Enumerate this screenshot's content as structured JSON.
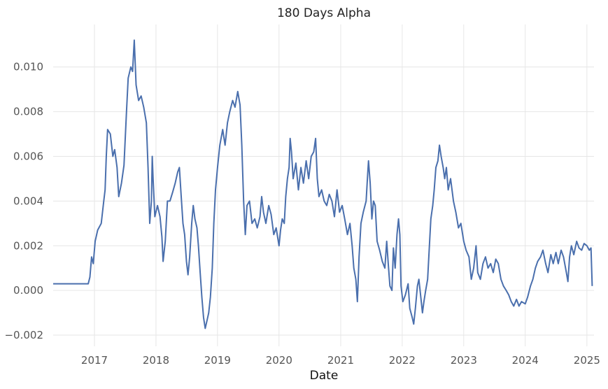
{
  "chart_data": {
    "type": "line",
    "title": "180 Days Alpha",
    "xlabel": "Date",
    "ylabel": "",
    "x_ticks": [
      "2017",
      "2018",
      "2019",
      "2020",
      "2021",
      "2022",
      "2023",
      "2024",
      "2025"
    ],
    "y_ticks": [
      "0.010",
      "0.008",
      "0.006",
      "0.004",
      "0.002",
      "0.000",
      "−0.002"
    ],
    "xlim": [
      "2016-05-01",
      "2025-02-12"
    ],
    "ylim": [
      -0.0025,
      0.0119
    ],
    "grid": true,
    "legend": "none",
    "line_color": "#4a6fad",
    "series": [
      {
        "points": [
          [
            "2016-05-01",
            0.0003
          ],
          [
            "2016-11-25",
            0.0003
          ],
          [
            "2016-12-05",
            0.0006
          ],
          [
            "2016-12-15",
            0.0015
          ],
          [
            "2016-12-25",
            0.0012
          ],
          [
            "2017-01-05",
            0.0022
          ],
          [
            "2017-01-20",
            0.0027
          ],
          [
            "2017-02-10",
            0.003
          ],
          [
            "2017-02-25",
            0.004
          ],
          [
            "2017-03-05",
            0.0045
          ],
          [
            "2017-03-12",
            0.006
          ],
          [
            "2017-03-20",
            0.0072
          ],
          [
            "2017-04-05",
            0.007
          ],
          [
            "2017-04-20",
            0.006
          ],
          [
            "2017-05-01",
            0.0063
          ],
          [
            "2017-05-15",
            0.0055
          ],
          [
            "2017-05-25",
            0.0042
          ],
          [
            "2017-06-10",
            0.0048
          ],
          [
            "2017-06-25",
            0.0056
          ],
          [
            "2017-07-10",
            0.008
          ],
          [
            "2017-07-20",
            0.0095
          ],
          [
            "2017-08-05",
            0.01
          ],
          [
            "2017-08-15",
            0.0098
          ],
          [
            "2017-08-25",
            0.0112
          ],
          [
            "2017-09-05",
            0.0092
          ],
          [
            "2017-09-20",
            0.0085
          ],
          [
            "2017-10-05",
            0.0087
          ],
          [
            "2017-10-20",
            0.0082
          ],
          [
            "2017-11-05",
            0.0075
          ],
          [
            "2017-11-15",
            0.0055
          ],
          [
            "2017-11-25",
            0.003
          ],
          [
            "2017-12-05",
            0.004
          ],
          [
            "2017-12-10",
            0.006
          ],
          [
            "2017-12-15",
            0.005
          ],
          [
            "2017-12-25",
            0.0033
          ],
          [
            "2018-01-10",
            0.0038
          ],
          [
            "2018-01-25",
            0.0033
          ],
          [
            "2018-02-05",
            0.0024
          ],
          [
            "2018-02-12",
            0.0013
          ],
          [
            "2018-02-25",
            0.0022
          ],
          [
            "2018-03-10",
            0.004
          ],
          [
            "2018-03-25",
            0.004
          ],
          [
            "2018-04-10",
            0.0044
          ],
          [
            "2018-04-25",
            0.0048
          ],
          [
            "2018-05-10",
            0.0053
          ],
          [
            "2018-05-20",
            0.0055
          ],
          [
            "2018-05-30",
            0.0043
          ],
          [
            "2018-06-10",
            0.003
          ],
          [
            "2018-06-20",
            0.0025
          ],
          [
            "2018-07-01",
            0.0013
          ],
          [
            "2018-07-10",
            0.0007
          ],
          [
            "2018-07-20",
            0.0015
          ],
          [
            "2018-08-01",
            0.003
          ],
          [
            "2018-08-10",
            0.0038
          ],
          [
            "2018-08-20",
            0.0032
          ],
          [
            "2018-09-01",
            0.0028
          ],
          [
            "2018-09-10",
            0.002
          ],
          [
            "2018-09-20",
            0.0008
          ],
          [
            "2018-09-30",
            -0.0003
          ],
          [
            "2018-10-10",
            -0.0012
          ],
          [
            "2018-10-20",
            -0.0017
          ],
          [
            "2018-11-01",
            -0.0013
          ],
          [
            "2018-11-10",
            -0.001
          ],
          [
            "2018-11-20",
            -0.0003
          ],
          [
            "2018-12-01",
            0.001
          ],
          [
            "2018-12-10",
            0.003
          ],
          [
            "2018-12-20",
            0.0045
          ],
          [
            "2019-01-01",
            0.0055
          ],
          [
            "2019-01-15",
            0.0065
          ],
          [
            "2019-02-01",
            0.0072
          ],
          [
            "2019-02-15",
            0.0065
          ],
          [
            "2019-03-01",
            0.0075
          ],
          [
            "2019-03-15",
            0.008
          ],
          [
            "2019-04-01",
            0.0085
          ],
          [
            "2019-04-15",
            0.0082
          ],
          [
            "2019-05-01",
            0.0089
          ],
          [
            "2019-05-15",
            0.0083
          ],
          [
            "2019-05-25",
            0.0065
          ],
          [
            "2019-06-05",
            0.004
          ],
          [
            "2019-06-15",
            0.0025
          ],
          [
            "2019-06-25",
            0.0038
          ],
          [
            "2019-07-10",
            0.004
          ],
          [
            "2019-07-25",
            0.003
          ],
          [
            "2019-08-10",
            0.0032
          ],
          [
            "2019-08-25",
            0.0028
          ],
          [
            "2019-09-10",
            0.0033
          ],
          [
            "2019-09-20",
            0.0042
          ],
          [
            "2019-10-01",
            0.0035
          ],
          [
            "2019-10-15",
            0.003
          ],
          [
            "2019-11-01",
            0.0038
          ],
          [
            "2019-11-15",
            0.0034
          ],
          [
            "2019-12-01",
            0.0025
          ],
          [
            "2019-12-15",
            0.0028
          ],
          [
            "2020-01-01",
            0.002
          ],
          [
            "2020-01-10",
            0.0027
          ],
          [
            "2020-01-20",
            0.0032
          ],
          [
            "2020-02-01",
            0.003
          ],
          [
            "2020-02-10",
            0.0042
          ],
          [
            "2020-02-20",
            0.005
          ],
          [
            "2020-03-01",
            0.0055
          ],
          [
            "2020-03-07",
            0.0068
          ],
          [
            "2020-03-15",
            0.0062
          ],
          [
            "2020-03-25",
            0.005
          ],
          [
            "2020-04-10",
            0.0057
          ],
          [
            "2020-04-25",
            0.0045
          ],
          [
            "2020-05-10",
            0.0055
          ],
          [
            "2020-05-25",
            0.0048
          ],
          [
            "2020-06-10",
            0.0058
          ],
          [
            "2020-06-25",
            0.005
          ],
          [
            "2020-07-10",
            0.006
          ],
          [
            "2020-07-25",
            0.0062
          ],
          [
            "2020-08-05",
            0.0068
          ],
          [
            "2020-08-15",
            0.005
          ],
          [
            "2020-08-25",
            0.0042
          ],
          [
            "2020-09-10",
            0.0045
          ],
          [
            "2020-09-25",
            0.004
          ],
          [
            "2020-10-10",
            0.0038
          ],
          [
            "2020-10-25",
            0.0043
          ],
          [
            "2020-11-10",
            0.004
          ],
          [
            "2020-11-25",
            0.0033
          ],
          [
            "2020-12-10",
            0.0045
          ],
          [
            "2020-12-25",
            0.0035
          ],
          [
            "2021-01-10",
            0.0038
          ],
          [
            "2021-01-25",
            0.0032
          ],
          [
            "2021-02-10",
            0.0025
          ],
          [
            "2021-02-25",
            0.003
          ],
          [
            "2021-03-10",
            0.002
          ],
          [
            "2021-03-20",
            0.001
          ],
          [
            "2021-04-01",
            0.0005
          ],
          [
            "2021-04-10",
            -0.0005
          ],
          [
            "2021-04-20",
            0.0015
          ],
          [
            "2021-05-01",
            0.003
          ],
          [
            "2021-05-15",
            0.0035
          ],
          [
            "2021-06-01",
            0.004
          ],
          [
            "2021-06-10",
            0.0052
          ],
          [
            "2021-06-15",
            0.0058
          ],
          [
            "2021-06-25",
            0.0048
          ],
          [
            "2021-07-05",
            0.0032
          ],
          [
            "2021-07-15",
            0.004
          ],
          [
            "2021-07-25",
            0.0038
          ],
          [
            "2021-08-05",
            0.0022
          ],
          [
            "2021-08-20",
            0.0018
          ],
          [
            "2021-09-05",
            0.0013
          ],
          [
            "2021-09-20",
            0.001
          ],
          [
            "2021-10-01",
            0.0022
          ],
          [
            "2021-10-10",
            0.0012
          ],
          [
            "2021-10-20",
            0.0002
          ],
          [
            "2021-11-01",
            0.0
          ],
          [
            "2021-11-10",
            0.0019
          ],
          [
            "2021-11-20",
            0.001
          ],
          [
            "2021-12-01",
            0.0025
          ],
          [
            "2021-12-10",
            0.0032
          ],
          [
            "2021-12-18",
            0.0025
          ],
          [
            "2021-12-25",
            0.0002
          ],
          [
            "2022-01-05",
            -0.0005
          ],
          [
            "2022-01-20",
            -0.0002
          ],
          [
            "2022-02-05",
            0.0003
          ],
          [
            "2022-02-15",
            -0.0008
          ],
          [
            "2022-03-01",
            -0.0012
          ],
          [
            "2022-03-10",
            -0.0015
          ],
          [
            "2022-03-20",
            -0.0008
          ],
          [
            "2022-04-01",
            0.0002
          ],
          [
            "2022-04-10",
            0.0005
          ],
          [
            "2022-04-20",
            -0.0002
          ],
          [
            "2022-05-01",
            -0.001
          ],
          [
            "2022-05-10",
            -0.0005
          ],
          [
            "2022-05-20",
            0.0
          ],
          [
            "2022-06-01",
            0.0005
          ],
          [
            "2022-06-10",
            0.0018
          ],
          [
            "2022-06-20",
            0.0032
          ],
          [
            "2022-07-01",
            0.0038
          ],
          [
            "2022-07-10",
            0.0045
          ],
          [
            "2022-07-20",
            0.0055
          ],
          [
            "2022-08-01",
            0.0058
          ],
          [
            "2022-08-10",
            0.0065
          ],
          [
            "2022-08-20",
            0.006
          ],
          [
            "2022-09-01",
            0.0055
          ],
          [
            "2022-09-10",
            0.005
          ],
          [
            "2022-09-20",
            0.0055
          ],
          [
            "2022-10-01",
            0.0045
          ],
          [
            "2022-10-15",
            0.005
          ],
          [
            "2022-11-01",
            0.004
          ],
          [
            "2022-11-15",
            0.0035
          ],
          [
            "2022-12-01",
            0.0028
          ],
          [
            "2022-12-15",
            0.003
          ],
          [
            "2023-01-01",
            0.0022
          ],
          [
            "2023-01-15",
            0.0018
          ],
          [
            "2023-02-01",
            0.0015
          ],
          [
            "2023-02-15",
            0.0005
          ],
          [
            "2023-03-01",
            0.001
          ],
          [
            "2023-03-15",
            0.002
          ],
          [
            "2023-03-25",
            0.0008
          ],
          [
            "2023-04-10",
            0.0005
          ],
          [
            "2023-04-25",
            0.0012
          ],
          [
            "2023-05-10",
            0.0015
          ],
          [
            "2023-05-25",
            0.001
          ],
          [
            "2023-06-10",
            0.0012
          ],
          [
            "2023-06-25",
            0.0008
          ],
          [
            "2023-07-10",
            0.0014
          ],
          [
            "2023-07-25",
            0.0012
          ],
          [
            "2023-08-10",
            0.0005
          ],
          [
            "2023-08-25",
            0.0002
          ],
          [
            "2023-09-10",
            0.0
          ],
          [
            "2023-09-25",
            -0.0002
          ],
          [
            "2023-10-10",
            -0.0005
          ],
          [
            "2023-10-25",
            -0.0007
          ],
          [
            "2023-11-10",
            -0.0004
          ],
          [
            "2023-11-25",
            -0.0007
          ],
          [
            "2023-12-10",
            -0.0005
          ],
          [
            "2024-01-01",
            -0.0006
          ],
          [
            "2024-01-15",
            -0.0003
          ],
          [
            "2024-02-01",
            0.0002
          ],
          [
            "2024-02-15",
            0.0005
          ],
          [
            "2024-03-01",
            0.001
          ],
          [
            "2024-03-15",
            0.0013
          ],
          [
            "2024-04-01",
            0.0015
          ],
          [
            "2024-04-15",
            0.0018
          ],
          [
            "2024-05-01",
            0.0012
          ],
          [
            "2024-05-15",
            0.0008
          ],
          [
            "2024-06-01",
            0.0016
          ],
          [
            "2024-06-15",
            0.0012
          ],
          [
            "2024-07-01",
            0.0017
          ],
          [
            "2024-07-15",
            0.0012
          ],
          [
            "2024-08-01",
            0.0018
          ],
          [
            "2024-08-15",
            0.0015
          ],
          [
            "2024-09-01",
            0.0008
          ],
          [
            "2024-09-10",
            0.0004
          ],
          [
            "2024-09-20",
            0.0015
          ],
          [
            "2024-10-01",
            0.002
          ],
          [
            "2024-10-15",
            0.0016
          ],
          [
            "2024-11-01",
            0.0022
          ],
          [
            "2024-11-15",
            0.0019
          ],
          [
            "2024-12-01",
            0.0018
          ],
          [
            "2024-12-15",
            0.0021
          ],
          [
            "2025-01-01",
            0.002
          ],
          [
            "2025-01-15",
            0.0018
          ],
          [
            "2025-01-25",
            0.0019
          ],
          [
            "2025-02-01",
            0.0002
          ]
        ]
      }
    ]
  }
}
